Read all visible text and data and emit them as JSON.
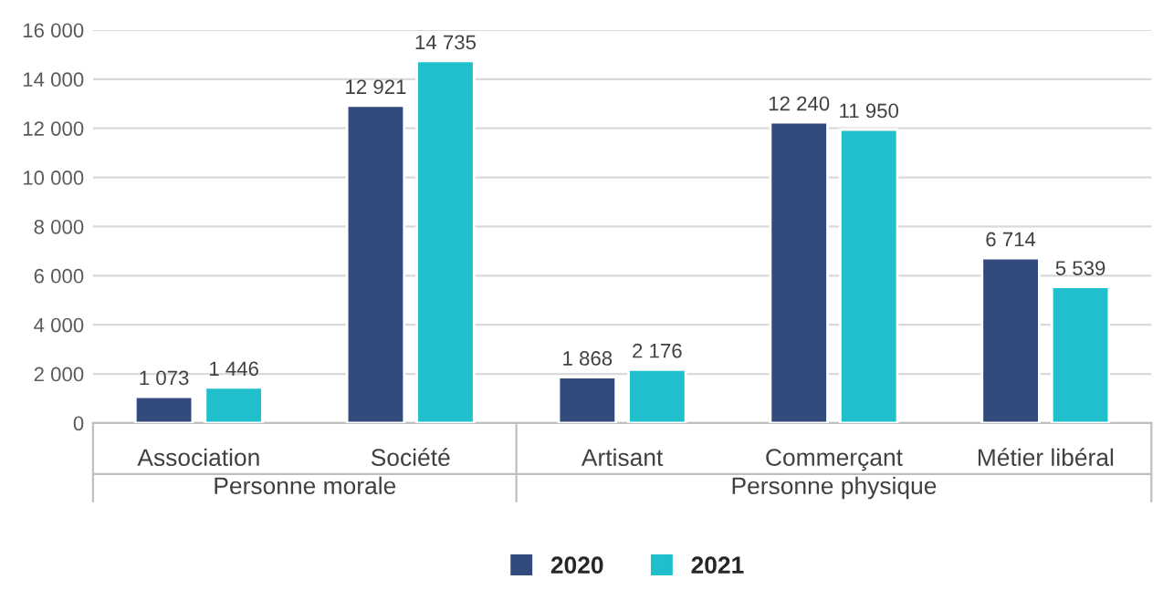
{
  "chart_data": {
    "type": "bar",
    "categories": [
      "Association",
      "Société",
      "Artisant",
      "Commerçant",
      "Métier libéral"
    ],
    "series": [
      {
        "name": "2020",
        "color": "#334a7d",
        "values": [
          1073,
          12921,
          1868,
          12240,
          6714
        ],
        "value_labels": [
          "1 073",
          "12 921",
          "1 868",
          "12 240",
          "6 714"
        ]
      },
      {
        "name": "2021",
        "color": "#1fbfcb",
        "values": [
          1446,
          14735,
          2176,
          11950,
          5539
        ],
        "value_labels": [
          "1 446",
          "14 735",
          "2 176",
          "11 950",
          "5 539"
        ]
      }
    ],
    "ylim": [
      0,
      16000
    ],
    "yticks": [
      0,
      {
        "value": 2000,
        "label": "2 000"
      },
      {
        "value": 4000,
        "label": "4 000"
      },
      {
        "value": 6000,
        "label": "6 000"
      },
      {
        "value": 8000,
        "label": "8 000"
      },
      {
        "value": 10000,
        "label": "10 000"
      },
      {
        "value": 12000,
        "label": "12 000"
      },
      {
        "value": 14000,
        "label": "14 000"
      },
      {
        "value": 16000,
        "label": "16 000"
      }
    ],
    "annotations": [
      "Personne morale",
      "Personne physique"
    ],
    "grid": "y",
    "legend": "bottom"
  }
}
